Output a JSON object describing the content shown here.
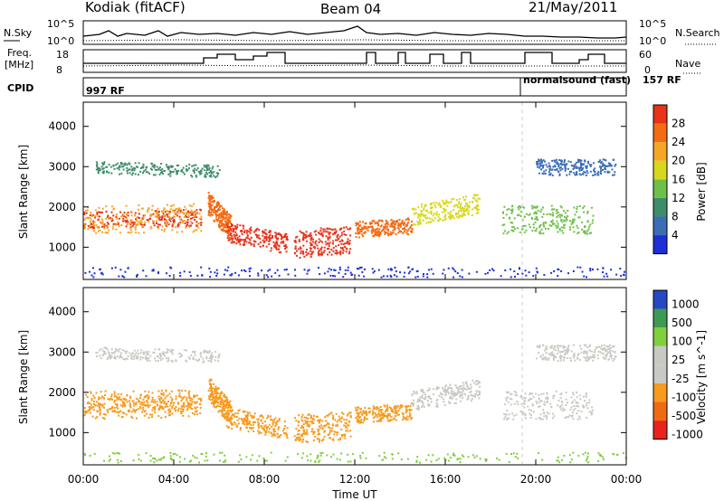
{
  "header": {
    "station": "Kodiak (fitACF)",
    "beam": "Beam 04",
    "date": "21/May/2011"
  },
  "strips": {
    "nsky_label": "N.Sky",
    "nsearch_label": "N.Search",
    "nsky_ticks": [
      "10^5",
      "10^0"
    ],
    "nsearch_ticks": [
      "10^5",
      "10^0"
    ],
    "freq_label_1": "Freq.",
    "freq_label_2": "[MHz]",
    "freq_ticks": [
      "18",
      "8"
    ],
    "nave_label": "Nave",
    "nave_ticks": [
      "60",
      "0"
    ],
    "cpid_label": "CPID",
    "cpid_left": "997 RF",
    "cpid_right_mode": "normalsound (fast)",
    "cpid_right": "157 RF"
  },
  "colors": {
    "power": [
      "#1c2fd8",
      "#3a6db5",
      "#3f8c6a",
      "#6fc04a",
      "#d7d81e",
      "#f5a623",
      "#f46b12",
      "#e8321a"
    ],
    "velocity": [
      "#e8231c",
      "#f06a12",
      "#f79a1e",
      "#c9c9c4",
      "#c9c9c4",
      "#7fcf3e",
      "#3e9a52",
      "#2748c4"
    ]
  },
  "chart_data": [
    {
      "type": "heatmap",
      "name": "power",
      "ylabel": "Slant Range [km]",
      "xlabel": "",
      "ylim": [
        200,
        4600
      ],
      "yticks": [
        "1000",
        "2000",
        "3000",
        "4000"
      ],
      "colorbar_label": "Power [dB]",
      "colorbar_ticks": [
        "28",
        "24",
        "20",
        "16",
        "12",
        "8",
        "4"
      ],
      "colorbar_range": [
        0,
        32
      ]
    },
    {
      "type": "heatmap",
      "name": "velocity",
      "ylabel": "Slant Range [km]",
      "xlabel": "Time UT",
      "xticks": [
        "00:00",
        "04:00",
        "08:00",
        "12:00",
        "16:00",
        "20:00",
        "00:00"
      ],
      "ylim": [
        200,
        4600
      ],
      "yticks": [
        "1000",
        "2000",
        "3000",
        "4000"
      ],
      "colorbar_label": "Velocity [m s^-1]",
      "colorbar_ticks": [
        "1000",
        "500",
        "100",
        "25",
        "-25",
        "-100",
        "-500",
        "-1000"
      ]
    }
  ]
}
